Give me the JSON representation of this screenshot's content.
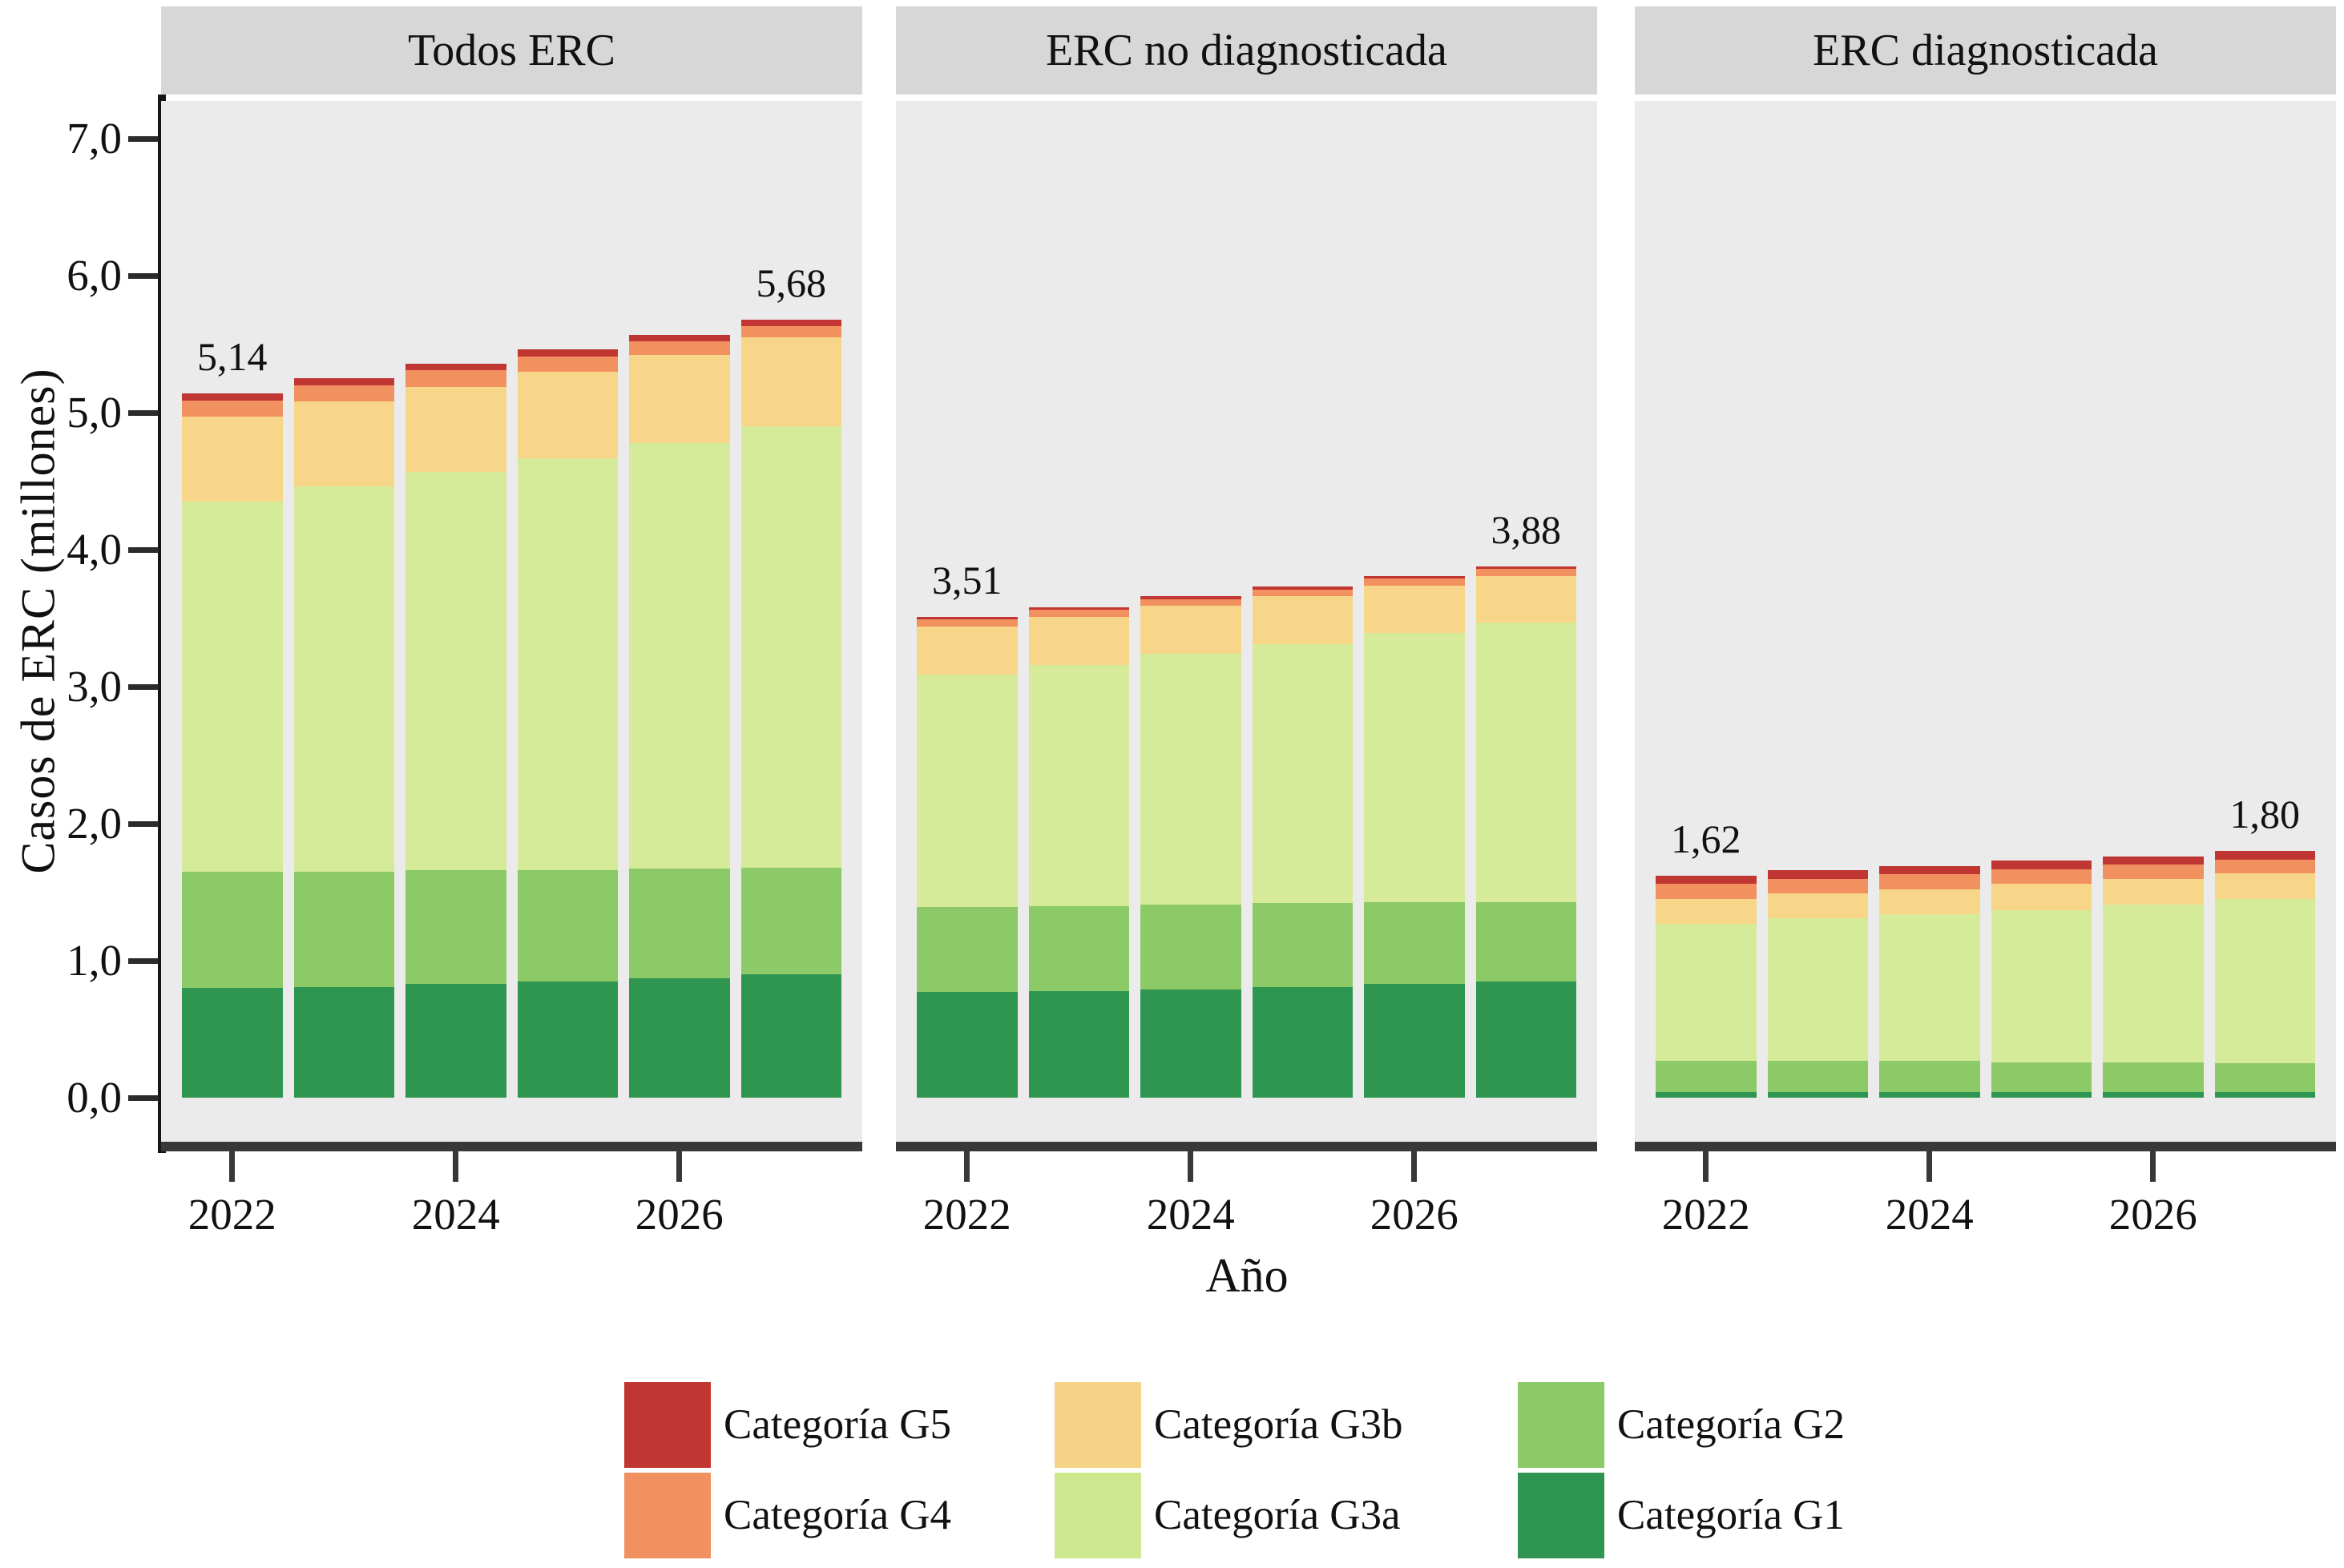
{
  "y_axis": {
    "label": "Casos de ERC (millones)",
    "tick_labels": [
      "0,0",
      "1,0",
      "2,0",
      "3,0",
      "4,0",
      "5,0",
      "6,0",
      "7,0"
    ],
    "tick_values": [
      0,
      1,
      2,
      3,
      4,
      5,
      6,
      7
    ]
  },
  "x_axis": {
    "label": "Año",
    "tick_labels": [
      "2022",
      "2024",
      "2026"
    ],
    "tick_bar_indices": [
      0,
      2,
      4
    ]
  },
  "chart_data": {
    "type": "bar",
    "stacked": true,
    "categories": [
      "2022",
      "2023",
      "2024",
      "2025",
      "2026",
      "2027"
    ],
    "xlabel": "Año",
    "ylabel": "Casos de ERC (millones)",
    "ylim": [
      0,
      7.3
    ],
    "grid": false,
    "stack_order": [
      "Categoría G1",
      "Categoría G2",
      "Categoría G3a",
      "Categoría G3b",
      "Categoría G4",
      "Categoría G5"
    ],
    "colors": {
      "Categoría G1": "#2f9651",
      "Categoría G2": "#8cc967",
      "Categoría G3a": "#d6eb99",
      "Categoría G3b": "#f7d689",
      "Categoría G4": "#f29160",
      "Categoría G5": "#c03632"
    },
    "facets": [
      {
        "title": "Todos ERC",
        "series": [
          {
            "name": "Categoría G1",
            "values": [
              0.8,
              0.81,
              0.83,
              0.85,
              0.87,
              0.9
            ]
          },
          {
            "name": "Categoría G2",
            "values": [
              0.85,
              0.84,
              0.83,
              0.81,
              0.8,
              0.78
            ]
          },
          {
            "name": "Categoría G3a",
            "values": [
              2.7,
              2.81,
              2.91,
              3.01,
              3.11,
              3.22
            ]
          },
          {
            "name": "Categoría G3b",
            "values": [
              0.62,
              0.62,
              0.62,
              0.63,
              0.64,
              0.65
            ]
          },
          {
            "name": "Categoría G4",
            "values": [
              0.12,
              0.12,
              0.12,
              0.11,
              0.1,
              0.08
            ]
          },
          {
            "name": "Categoría G5",
            "values": [
              0.05,
              0.05,
              0.05,
              0.05,
              0.05,
              0.05
            ]
          }
        ],
        "totals": [
          5.14,
          5.25,
          5.36,
          5.46,
          5.57,
          5.68
        ],
        "annotations": [
          {
            "bar_index": 0,
            "text": "5,14"
          },
          {
            "bar_index": 5,
            "text": "5,68"
          }
        ]
      },
      {
        "title": "ERC no diagnosticada",
        "series": [
          {
            "name": "Categoría G1",
            "values": [
              0.77,
              0.78,
              0.79,
              0.81,
              0.83,
              0.85
            ]
          },
          {
            "name": "Categoría G2",
            "values": [
              0.62,
              0.62,
              0.62,
              0.61,
              0.6,
              0.58
            ]
          },
          {
            "name": "Categoría G3a",
            "values": [
              1.7,
              1.76,
              1.83,
              1.89,
              1.96,
              2.04
            ]
          },
          {
            "name": "Categoría G3b",
            "values": [
              0.35,
              0.35,
              0.35,
              0.35,
              0.35,
              0.34
            ]
          },
          {
            "name": "Categoría G4",
            "values": [
              0.05,
              0.05,
              0.05,
              0.05,
              0.05,
              0.05
            ]
          },
          {
            "name": "Categoría G5",
            "values": [
              0.02,
              0.02,
              0.02,
              0.02,
              0.02,
              0.02
            ]
          }
        ],
        "totals": [
          3.51,
          3.58,
          3.66,
          3.73,
          3.81,
          3.88
        ],
        "annotations": [
          {
            "bar_index": 0,
            "text": "3,51"
          },
          {
            "bar_index": 5,
            "text": "3,88"
          }
        ]
      },
      {
        "title": "ERC diagnosticada",
        "series": [
          {
            "name": "Categoría G1",
            "values": [
              0.04,
              0.04,
              0.04,
              0.04,
              0.04,
              0.04
            ]
          },
          {
            "name": "Categoría G2",
            "values": [
              0.23,
              0.23,
              0.23,
              0.22,
              0.22,
              0.21
            ]
          },
          {
            "name": "Categoría G3a",
            "values": [
              1.0,
              1.04,
              1.07,
              1.11,
              1.15,
              1.2
            ]
          },
          {
            "name": "Categoría G3b",
            "values": [
              0.18,
              0.18,
              0.18,
              0.19,
              0.19,
              0.19
            ]
          },
          {
            "name": "Categoría G4",
            "values": [
              0.11,
              0.11,
              0.11,
              0.11,
              0.1,
              0.1
            ]
          },
          {
            "name": "Categoría G5",
            "values": [
              0.06,
              0.06,
              0.06,
              0.06,
              0.06,
              0.06
            ]
          }
        ],
        "totals": [
          1.62,
          1.66,
          1.69,
          1.73,
          1.76,
          1.8
        ],
        "annotations": [
          {
            "bar_index": 0,
            "text": "1,62"
          },
          {
            "bar_index": 5,
            "text": "1,80"
          }
        ]
      }
    ]
  },
  "legend": {
    "columns": [
      [
        {
          "label": "Categoría G5",
          "color": "#c03632"
        },
        {
          "label": "Categoría G4",
          "color": "#f29160"
        }
      ],
      [
        {
          "label": "Categoría G3b",
          "color": "#f6d286"
        },
        {
          "label": "Categoría G3a",
          "color": "#cde78e"
        }
      ],
      [
        {
          "label": "Categoría G2",
          "color": "#8cc967"
        },
        {
          "label": "Categoría G1",
          "color": "#2f9651"
        }
      ]
    ]
  },
  "style": {
    "panel_bg": "#ebebeb",
    "strip_bg": "#d7d7d7",
    "axis_color": "#383838",
    "text_color": "#111111"
  }
}
